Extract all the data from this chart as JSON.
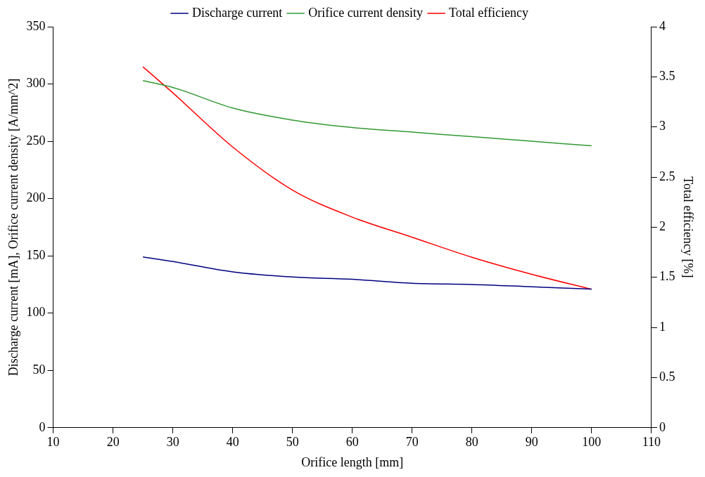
{
  "chart_data": {
    "type": "line",
    "xlabel": "Orifice length [mm]",
    "ylabel": "Discharge current [mA], Orifice current density [A/mm^2]",
    "y2label": "Total efficiency [%]",
    "x": [
      25,
      30,
      40,
      50,
      60,
      70,
      80,
      90,
      100
    ],
    "series": [
      {
        "name": "Discharge current",
        "color": "#000080",
        "values": [
          149,
          145,
          136,
          131.5,
          129.5,
          126,
          125,
          123,
          121
        ]
      },
      {
        "name": "Orifice current density",
        "color": "#339933",
        "values": [
          303,
          297,
          279,
          268.5,
          262,
          258,
          254,
          250,
          246
        ]
      },
      {
        "name": "Total efficiency",
        "color": "#ff0000",
        "axis": "y2",
        "values": [
          3.6,
          3.34,
          2.8,
          2.37,
          2.1,
          1.9,
          1.7,
          1.53,
          1.38
        ]
      }
    ],
    "xlim": [
      10,
      110
    ],
    "xticks": [
      10,
      20,
      30,
      40,
      50,
      60,
      70,
      80,
      90,
      100,
      110
    ],
    "ylim": [
      0,
      350
    ],
    "yticks": [
      0,
      50,
      100,
      150,
      200,
      250,
      300,
      350
    ],
    "y2lim": [
      0,
      4
    ],
    "y2ticks": [
      0,
      0.5,
      1,
      1.5,
      2,
      2.5,
      3,
      3.5,
      4
    ],
    "legend": "top",
    "grid": false,
    "marker": "none",
    "line_style": "solid"
  }
}
